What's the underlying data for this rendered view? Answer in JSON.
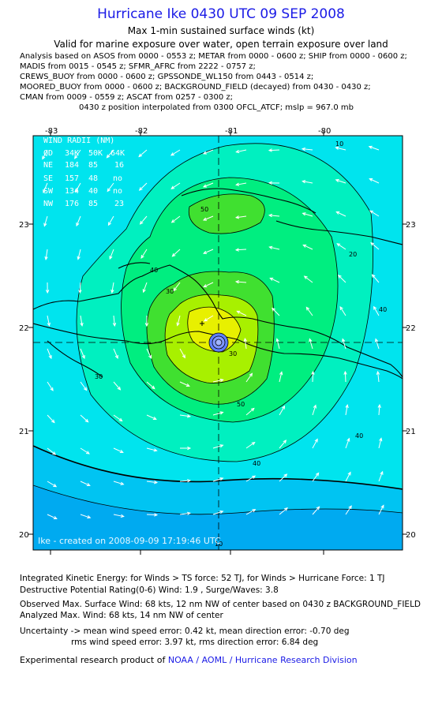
{
  "header": {
    "title": "Hurricane Ike 0430 UTC 09 SEP 2008",
    "subtitle1": "Max 1-min sustained surface winds (kt)",
    "subtitle2": "Valid for marine exposure over water, open terrain exposure over land"
  },
  "sources": [
    "Analysis based on  ASOS from 0000 - 0553 z;  METAR from 0000 - 0600 z;  SHIP from 0000 - 0600 z;",
    "MADIS from 0015 - 0545 z;  SFMR_AFRC from 2222 - 0757 z;",
    "CREWS_BUOY from 0000 - 0600 z;  GPSSONDE_WL150 from 0443 - 0514 z;",
    "MOORED_BUOY from 0000 - 0600 z;  BACKGROUND_FIELD (decayed) from 0430 - 0430 z;",
    "CMAN from 0009 - 0559 z;  ASCAT from 0257 - 0300 z;"
  ],
  "interp_note": "0430 z position interpolated from 0300 OFCL_ATCF; mslp = 967.0 mb",
  "map": {
    "lon_ticks": [
      "-83",
      "-82",
      "-81",
      "-80"
    ],
    "lat_ticks": [
      "23",
      "22",
      "21",
      "20"
    ],
    "contour_labels": [
      "10",
      "20",
      "30",
      "40",
      "50",
      "50",
      "40",
      "40",
      "10",
      "30",
      "40",
      "30"
    ],
    "credit": "Ike - created on 2008-09-09 17:19:46 UTC",
    "wind_radii": {
      "header": [
        "WIND RADII (NM)"
      ],
      "columns": [
        "QD",
        "34K",
        "50K",
        "64K"
      ],
      "rows": [
        [
          "NE",
          "184",
          "85",
          "16"
        ],
        [
          "SE",
          "157",
          "48",
          "no"
        ],
        [
          "SW",
          "134",
          "40",
          "no"
        ],
        [
          "NW",
          "176",
          "85",
          "23"
        ]
      ]
    },
    "colors": {
      "c10": "#00aaf0",
      "c20": "#00c4f2",
      "c30": "#00e4ee",
      "c40": "#00f0c0",
      "c50": "#00ee80",
      "c60": "#40e030",
      "c64": "#a8f000",
      "c68": "#e8f000",
      "land": "#000000"
    }
  },
  "footer": {
    "ike": "Integrated Kinetic Energy:  for Winds > TS force: 52 TJ,  for Winds > Hurricane Force: 1 TJ",
    "dpr": "Destructive Potential Rating(0-6)   Wind: 1.9 , Surge/Waves: 3.8",
    "obs": "Observed Max. Surface Wind: 68 kts, 12 nm NW of center based on 0430 z BACKGROUND_FIELD",
    "analyzed": "Analyzed Max. Wind: 68 kts, 14 nm NW of center",
    "unc1": "Uncertainty -> mean wind speed error: 0.42 kt,   mean direction error:  -0.70 deg",
    "unc2": "rms wind speed error: 3.97 kt,   rms direction error: 6.84 deg",
    "product_prefix": "Experimental research product of",
    "product_link": "NOAA / AOML / Hurricane Research Division"
  }
}
